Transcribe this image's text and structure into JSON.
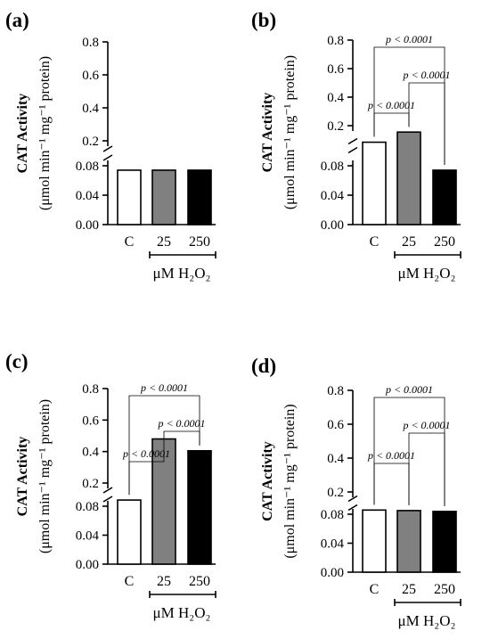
{
  "chart_data": [
    {
      "type": "bar",
      "panel_label": "(a)",
      "ylabel_line1": "CAT Activity",
      "ylabel_line2": "(μmol min⁻¹ mg⁻¹ protein)",
      "categories": [
        "C",
        "25",
        "250"
      ],
      "xgroup_label": "μM H₂O₂",
      "values": [
        0.074,
        0.074,
        0.074
      ],
      "colors": [
        "#ffffff",
        "#808080",
        "#000000"
      ],
      "y_lower_ticks": [
        "0.00",
        "0.04",
        "0.08"
      ],
      "y_upper_ticks": [
        "0.2",
        "0.4",
        "0.6",
        "0.8"
      ],
      "comparisons": []
    },
    {
      "type": "bar",
      "panel_label": "(b)",
      "ylabel_line1": "CAT Activity",
      "ylabel_line2": "(μmol min⁻¹ mg⁻¹ protein)",
      "categories": [
        "C",
        "25",
        "250"
      ],
      "xgroup_label": "μM H₂O₂",
      "values": [
        0.084,
        0.155,
        0.074
      ],
      "colors": [
        "#ffffff",
        "#808080",
        "#000000"
      ],
      "y_lower_ticks": [
        "0.00",
        "0.04",
        "0.08"
      ],
      "y_upper_ticks": [
        "0.2",
        "0.4",
        "0.6",
        "0.8"
      ],
      "comparisons": [
        {
          "pair": [
            "C",
            "25"
          ],
          "label": "p < 0.0001"
        },
        {
          "pair": [
            "25",
            "250"
          ],
          "label": "p < 0.0001"
        },
        {
          "pair": [
            "C",
            "250"
          ],
          "label": "p < 0.0001"
        }
      ]
    },
    {
      "type": "bar",
      "panel_label": "(c)",
      "ylabel_line1": "CAT Activity",
      "ylabel_line2": "(μmol min⁻¹ mg⁻¹ protein)",
      "categories": [
        "C",
        "25",
        "250"
      ],
      "xgroup_label": "μM H₂O₂",
      "values": [
        0.092,
        0.48,
        0.405
      ],
      "colors": [
        "#ffffff",
        "#808080",
        "#000000"
      ],
      "y_lower_ticks": [
        "0.00",
        "0.04",
        "0.08"
      ],
      "y_upper_ticks": [
        "0.2",
        "0.4",
        "0.6",
        "0.8"
      ],
      "comparisons": [
        {
          "pair": [
            "C",
            "25"
          ],
          "label": "p < 0.0001"
        },
        {
          "pair": [
            "25",
            "250"
          ],
          "label": "p < 0.0001"
        },
        {
          "pair": [
            "C",
            "250"
          ],
          "label": "p < 0.0001"
        }
      ]
    },
    {
      "type": "bar",
      "panel_label": "(d)",
      "ylabel_line1": "CAT Activity",
      "ylabel_line2": "(μmol min⁻¹ mg⁻¹ protein)",
      "categories": [
        "C",
        "25",
        "250"
      ],
      "xgroup_label": "μM H₂O₂",
      "values": [
        0.093,
        0.09,
        0.085
      ],
      "colors": [
        "#ffffff",
        "#808080",
        "#000000"
      ],
      "y_lower_ticks": [
        "0.00",
        "0.04",
        "0.08"
      ],
      "y_upper_ticks": [
        "0.2",
        "0.4",
        "0.6",
        "0.8"
      ],
      "comparisons": [
        {
          "pair": [
            "C",
            "25"
          ],
          "label": "p < 0.0001"
        },
        {
          "pair": [
            "25",
            "250"
          ],
          "label": "p < 0.0001"
        },
        {
          "pair": [
            "C",
            "250"
          ],
          "label": "p < 0.0001"
        }
      ]
    }
  ]
}
